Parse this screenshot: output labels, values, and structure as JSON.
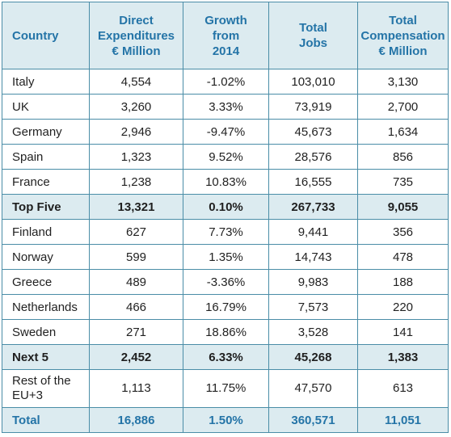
{
  "header": {
    "country": "Country",
    "direct_expenditures": [
      "Direct",
      "Expenditures",
      "€ Million"
    ],
    "growth": [
      "Growth",
      "from",
      "2014"
    ],
    "total_jobs": [
      "Total",
      "Jobs"
    ],
    "total_compensation": [
      "Total",
      "Compensation",
      "€ Million"
    ]
  },
  "rows": [
    {
      "country": "Italy",
      "expenditures": "4,554",
      "growth": "-1.02%",
      "jobs": "103,010",
      "compensation": "3,130",
      "type": "normal"
    },
    {
      "country": "UK",
      "expenditures": "3,260",
      "growth": "3.33%",
      "jobs": "73,919",
      "compensation": "2,700",
      "type": "normal"
    },
    {
      "country": "Germany",
      "expenditures": "2,946",
      "growth": "-9.47%",
      "jobs": "45,673",
      "compensation": "1,634",
      "type": "normal"
    },
    {
      "country": "Spain",
      "expenditures": "1,323",
      "growth": "9.52%",
      "jobs": "28,576",
      "compensation": "856",
      "type": "normal"
    },
    {
      "country": "France",
      "expenditures": "1,238",
      "growth": "10.83%",
      "jobs": "16,555",
      "compensation": "735",
      "type": "normal"
    },
    {
      "country": "Top Five",
      "expenditures": "13,321",
      "growth": "0.10%",
      "jobs": "267,733",
      "compensation": "9,055",
      "type": "subtotal"
    },
    {
      "country": "Finland",
      "expenditures": "627",
      "growth": "7.73%",
      "jobs": "9,441",
      "compensation": "356",
      "type": "normal"
    },
    {
      "country": "Norway",
      "expenditures": "599",
      "growth": "1.35%",
      "jobs": "14,743",
      "compensation": "478",
      "type": "normal"
    },
    {
      "country": "Greece",
      "expenditures": "489",
      "growth": "-3.36%",
      "jobs": "9,983",
      "compensation": "188",
      "type": "normal"
    },
    {
      "country": "Netherlands",
      "expenditures": "466",
      "growth": "16.79%",
      "jobs": "7,573",
      "compensation": "220",
      "type": "normal"
    },
    {
      "country": "Sweden",
      "expenditures": "271",
      "growth": "18.86%",
      "jobs": "3,528",
      "compensation": "141",
      "type": "normal"
    },
    {
      "country": "Next 5",
      "expenditures": "2,452",
      "growth": "6.33%",
      "jobs": "45,268",
      "compensation": "1,383",
      "type": "subtotal"
    },
    {
      "country": [
        "Rest of the",
        "EU+3"
      ],
      "expenditures": "1,113",
      "growth": "11.75%",
      "jobs": "47,570",
      "compensation": "613",
      "type": "tall"
    },
    {
      "country": "Total",
      "expenditures": "16,886",
      "growth": "1.50%",
      "jobs": "360,571",
      "compensation": "11,051",
      "type": "total"
    }
  ],
  "colors": {
    "header_bg": "#dcebf0",
    "header_text": "#2474a7",
    "border": "#4a8da7"
  }
}
